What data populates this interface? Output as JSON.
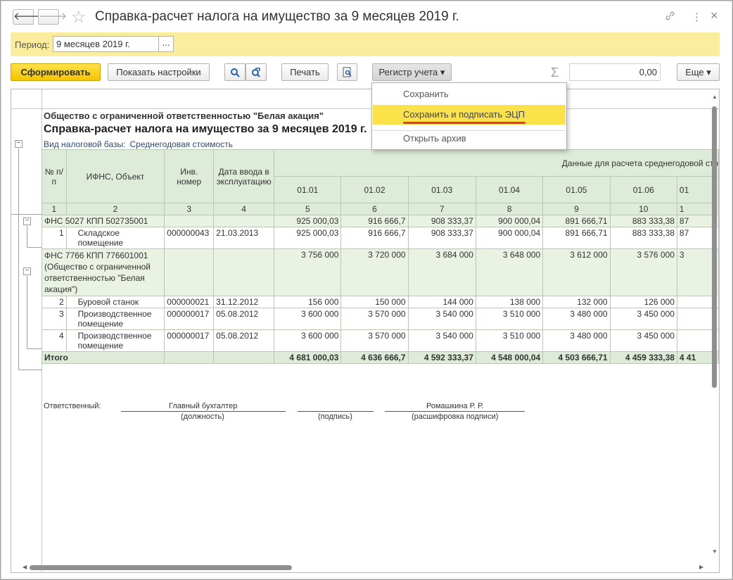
{
  "window": {
    "title": "Справка-расчет налога на имущество за 9 месяцев 2019 г.",
    "back_icon": "arrow-left",
    "fwd_icon": "arrow-right",
    "star": "☆",
    "link_icon": "🔗",
    "more_icon": "⋮",
    "close_icon": "×"
  },
  "period": {
    "label": "Период:",
    "value": "9 месяцев 2019 г.",
    "choose": "..."
  },
  "toolbar": {
    "generate": "Сформировать",
    "settings": "Показать настройки",
    "print": "Печать",
    "register": "Регистр учета ▾",
    "sum_value": "0,00",
    "more": "Еще ▾"
  },
  "menu": {
    "items": [
      "Сохранить",
      "Сохранить и подписать ЭЦП",
      "Открыть архив"
    ],
    "highlight_color": "#fce24a"
  },
  "report": {
    "org": "Общество с ограниченной ответственностью \"Белая акация\"",
    "title": "Справка-расчет налога на имущество за 9 месяцев 2019 г.",
    "basis_label": "Вид налоговой базы:",
    "basis_value": "Среднегодовая стоимость",
    "headers": {
      "num": "№ п/п",
      "ifns": "ИФНС, Объект",
      "inv": "Инв. номер",
      "date": "Дата ввода в эксплуатацию",
      "data_group": "Данные для расчета среднегодовой сто",
      "dates": [
        "01.01",
        "01.02",
        "01.03",
        "01.04",
        "01.05",
        "01.06",
        "01"
      ]
    },
    "col_numbers": [
      "1",
      "2",
      "3",
      "4",
      "5",
      "6",
      "7",
      "8",
      "9",
      "10",
      "1"
    ],
    "group1": {
      "name": "ФНС 5027 КПП 502735001",
      "values": [
        "925 000,03",
        "916 666,7",
        "908 333,37",
        "900 000,04",
        "891 666,71",
        "883 333,38",
        "87"
      ]
    },
    "row1": {
      "n": "1",
      "name": "Складское помещение",
      "inv": "000000043",
      "date": "21.03.2013",
      "values": [
        "925 000,03",
        "916 666,7",
        "908 333,37",
        "900 000,04",
        "891 666,71",
        "883 333,38",
        "87"
      ]
    },
    "group2": {
      "name": "ФНС 7766 КПП 776601001 (Общество с ограниченной ответственностью \"Белая акация\")",
      "values": [
        "3 756 000",
        "3 720 000",
        "3 684 000",
        "3 648 000",
        "3 612 000",
        "3 576 000",
        "3"
      ]
    },
    "row2": {
      "n": "2",
      "name": "Буровой станок",
      "inv": "000000021",
      "date": "31.12.2012",
      "values": [
        "156 000",
        "150 000",
        "144 000",
        "138 000",
        "132 000",
        "126 000",
        ""
      ]
    },
    "row3": {
      "n": "3",
      "name": "Производственное помещение",
      "inv": "000000017",
      "date": "05.08.2012",
      "values": [
        "3 600 000",
        "3 570 000",
        "3 540 000",
        "3 510 000",
        "3 480 000",
        "3 450 000",
        ""
      ]
    },
    "row4": {
      "n": "4",
      "name": "Производственное помещение",
      "inv": "000000017",
      "date": "05.08.2012",
      "values": [
        "3 600 000",
        "3 570 000",
        "3 540 000",
        "3 510 000",
        "3 480 000",
        "3 450 000",
        ""
      ]
    },
    "total": {
      "label": "Итого",
      "values": [
        "4 681 000,03",
        "4 636 666,7",
        "4 592 333,37",
        "4 548 000,04",
        "4 503 666,71",
        "4 459 333,38",
        "4 41"
      ]
    },
    "signature": {
      "responsible": "Ответственный:",
      "position": "Главный бухгалтер",
      "position_caption": "(должность)",
      "sign_caption": "(подпись)",
      "name": "Ромашкина Р. Р.",
      "name_caption": "(расшифровка подписи)"
    }
  }
}
